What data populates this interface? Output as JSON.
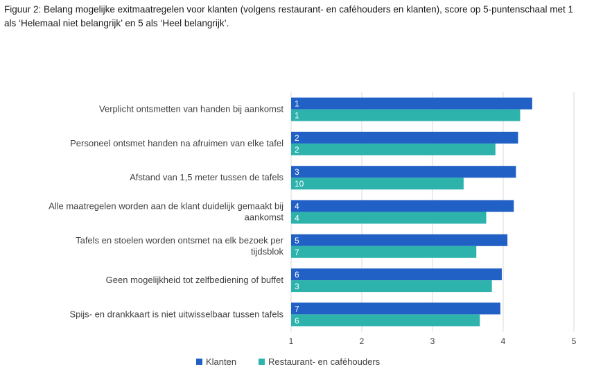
{
  "title": "Figuur 2: Belang mogelijke exitmaatregelen voor klanten (volgens restaurant- en caféhouders en klanten), score op 5-puntenschaal met 1 als ‘Helemaal niet belangrijk’ en 5 als ‘Heel belangrijk’.",
  "chart_data": {
    "type": "bar",
    "orientation": "horizontal",
    "categories": [
      [
        "Verplicht ontsmetten van handen bij aankomst"
      ],
      [
        "Personeel ontsmet handen na afruimen van elke tafel"
      ],
      [
        "Afstand van 1,5 meter tussen de tafels"
      ],
      [
        "Alle maatregelen worden aan de klant duidelijk gemaakt bij",
        "aankomst"
      ],
      [
        "Tafels en stoelen worden ontsmet na elk bezoek per",
        "tijdsblok"
      ],
      [
        "Geen mogelijkheid tot zelfbediening of buffet"
      ],
      [
        "Spijs- en drankkaart is niet uitwisselbaar tussen tafels"
      ]
    ],
    "series": [
      {
        "name": "Klanten",
        "color": "#2160C4",
        "values": [
          4.41,
          4.21,
          4.18,
          4.15,
          4.06,
          3.98,
          3.96
        ],
        "labels": [
          "1",
          "2",
          "3",
          "4",
          "5",
          "6",
          "7"
        ]
      },
      {
        "name": "Restaurant- en caféhouders",
        "color": "#2EB3AC",
        "values": [
          4.24,
          3.89,
          3.44,
          3.76,
          3.62,
          3.84,
          3.67
        ],
        "labels": [
          "1",
          "2",
          "10",
          "4",
          "7",
          "3",
          "6"
        ]
      }
    ],
    "xlim": [
      1,
      5
    ],
    "xticks": [
      1,
      2,
      3,
      4,
      5
    ],
    "grid": "vertical",
    "legend": "bottom"
  }
}
